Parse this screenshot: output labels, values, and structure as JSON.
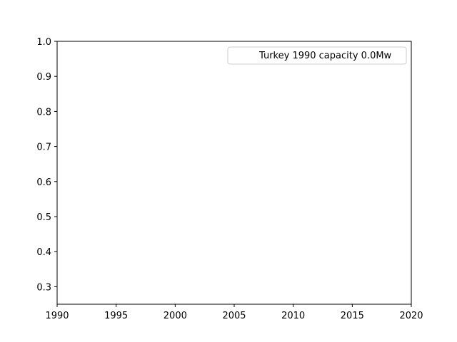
{
  "chart_data": {
    "type": "line",
    "title": "",
    "xlabel": "",
    "ylabel": "",
    "xlim": [
      1990,
      2020
    ],
    "ylim": [
      0.25,
      1.0
    ],
    "x_ticks": [
      1990,
      1995,
      2000,
      2005,
      2010,
      2015,
      2020
    ],
    "y_ticks": [
      0.3,
      0.4,
      0.5,
      0.6,
      0.7,
      0.8,
      0.9,
      1.0
    ],
    "x_tick_labels": [
      "1990",
      "1995",
      "2000",
      "2005",
      "2010",
      "2015",
      "2020"
    ],
    "y_tick_labels": [
      "0.3",
      "0.4",
      "0.5",
      "0.6",
      "0.7",
      "0.8",
      "0.9",
      "1.0"
    ],
    "grid": false,
    "legend": {
      "placement": "top-right",
      "entries": [
        "Turkey 1990 capacity 0.0Mw"
      ]
    },
    "series": [
      {
        "name": "Turkey 1990 capacity 0.0Mw",
        "x": [],
        "y": []
      }
    ]
  }
}
